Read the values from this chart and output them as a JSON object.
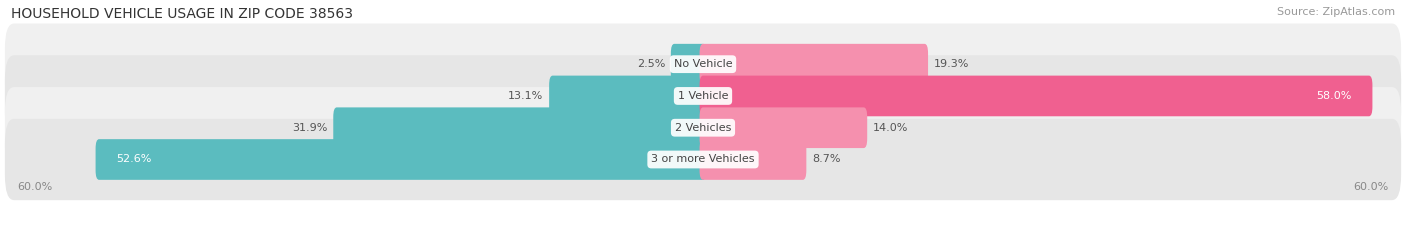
{
  "title": "HOUSEHOLD VEHICLE USAGE IN ZIP CODE 38563",
  "source": "Source: ZipAtlas.com",
  "categories": [
    "No Vehicle",
    "1 Vehicle",
    "2 Vehicles",
    "3 or more Vehicles"
  ],
  "owner_values": [
    2.5,
    13.1,
    31.9,
    52.6
  ],
  "renter_values": [
    19.3,
    58.0,
    14.0,
    8.7
  ],
  "owner_color": "#5bbcbf",
  "renter_color": "#f590ae",
  "renter_color_bright": "#f06090",
  "row_bg_colors": [
    "#f0f0f0",
    "#e6e6e6",
    "#f0f0f0",
    "#e6e6e6"
  ],
  "xlim": 60.0,
  "title_fontsize": 10,
  "source_fontsize": 8,
  "label_fontsize": 8,
  "cat_fontsize": 8
}
